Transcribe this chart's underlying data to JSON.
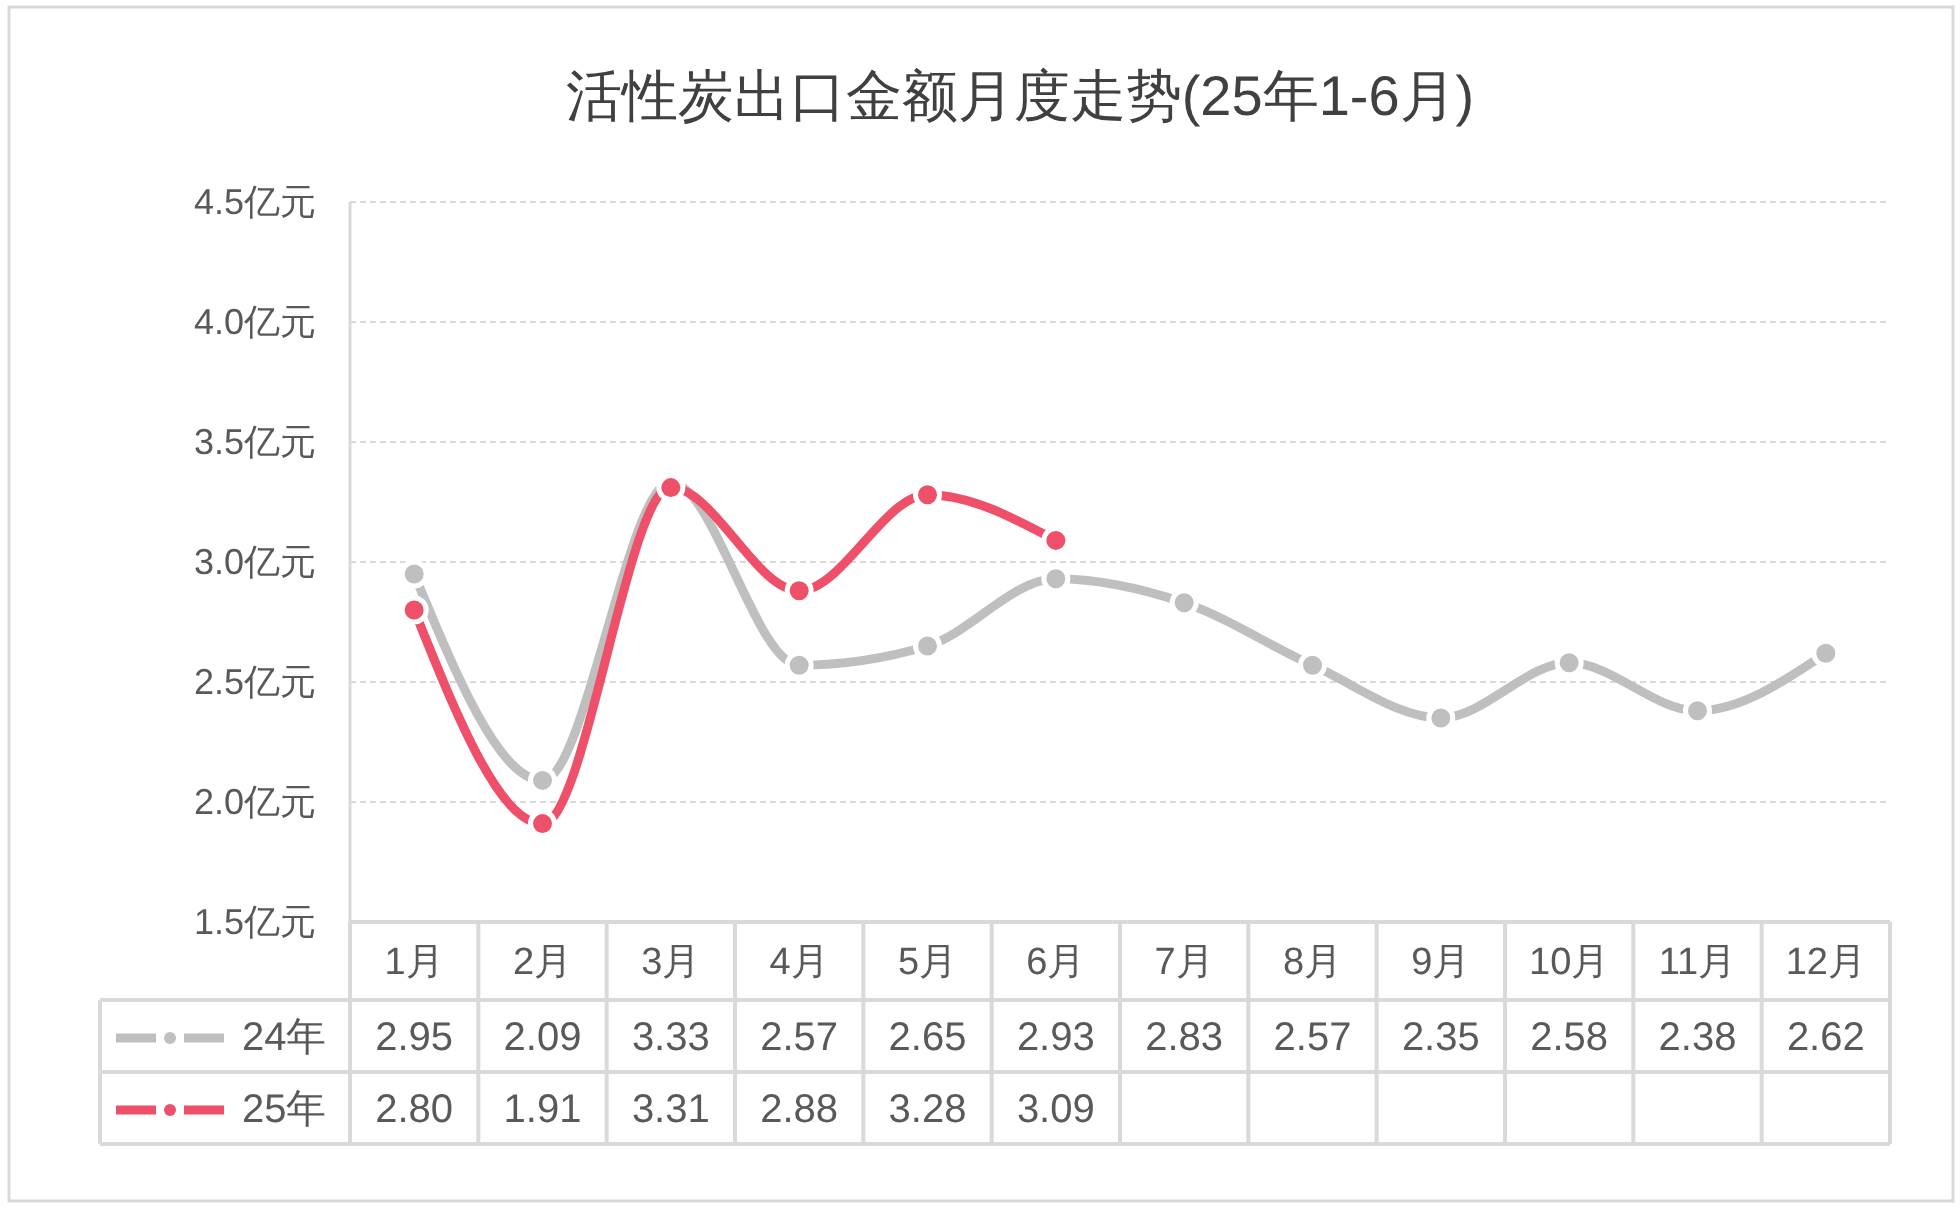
{
  "chart_data": {
    "type": "line",
    "title": "活性炭出口金额月度走势(25年1-6月)",
    "categories": [
      "1月",
      "2月",
      "3月",
      "4月",
      "5月",
      "6月",
      "7月",
      "8月",
      "9月",
      "10月",
      "11月",
      "12月"
    ],
    "series": [
      {
        "name": "24年",
        "color": "#bfbfbf",
        "values": [
          2.95,
          2.09,
          3.33,
          2.57,
          2.65,
          2.93,
          2.83,
          2.57,
          2.35,
          2.58,
          2.38,
          2.62
        ],
        "value_labels": [
          "2.95",
          "2.09",
          "3.33",
          "2.57",
          "2.65",
          "2.93",
          "2.83",
          "2.57",
          "2.35",
          "2.58",
          "2.38",
          "2.62"
        ]
      },
      {
        "name": "25年",
        "color": "#ef5069",
        "values": [
          2.8,
          1.91,
          3.31,
          2.88,
          3.28,
          3.09,
          null,
          null,
          null,
          null,
          null,
          null
        ],
        "value_labels": [
          "2.80",
          "1.91",
          "3.31",
          "2.88",
          "3.28",
          "3.09",
          null,
          null,
          null,
          null,
          null,
          null
        ]
      }
    ],
    "ylim": [
      1.5,
      4.5
    ],
    "yticks": [
      {
        "value": 1.5,
        "label": "1.5亿元"
      },
      {
        "value": 2.0,
        "label": "2.0亿元"
      },
      {
        "value": 2.5,
        "label": "2.5亿元"
      },
      {
        "value": 3.0,
        "label": "3.0亿元"
      },
      {
        "value": 3.5,
        "label": "3.5亿元"
      },
      {
        "value": 4.0,
        "label": "4.0亿元"
      },
      {
        "value": 4.5,
        "label": "4.5亿元"
      }
    ],
    "grid": "y",
    "legend": "bottom left",
    "marker": "circle",
    "line_style": "solid"
  }
}
